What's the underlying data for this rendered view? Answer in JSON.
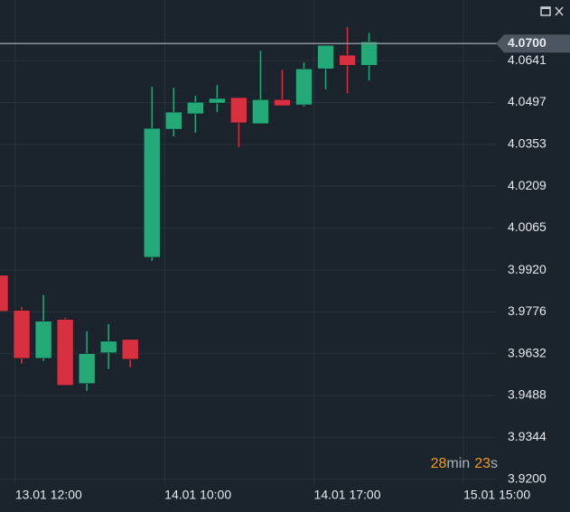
{
  "chart_data": {
    "type": "candlestick",
    "x": [
      0,
      1,
      2,
      3,
      4,
      5,
      6,
      7,
      8,
      9,
      10,
      11,
      12,
      13,
      14,
      15,
      16,
      17
    ],
    "open": [
      3.9902,
      3.9781,
      3.9616,
      3.975,
      3.9529,
      3.9635,
      3.9681,
      3.9964,
      4.0405,
      4.0458,
      4.0495,
      4.0514,
      4.0424,
      4.0507,
      4.0489,
      4.0613,
      4.066,
      4.0625
    ],
    "high": [
      3.9902,
      3.9793,
      3.9834,
      3.9756,
      3.9709,
      3.9734,
      3.9681,
      4.0551,
      4.0548,
      4.052,
      4.0557,
      4.0514,
      4.0675,
      4.061,
      4.0635,
      4.0694,
      4.0756,
      4.0737
    ],
    "low": [
      3.9778,
      3.9598,
      3.9607,
      3.9523,
      3.9504,
      3.9579,
      3.9585,
      3.9952,
      4.038,
      4.0393,
      4.0464,
      4.0343,
      4.0424,
      4.0486,
      4.0483,
      4.0542,
      4.0529,
      4.0573
    ],
    "close": [
      3.9778,
      3.9616,
      3.9744,
      3.9523,
      3.9632,
      3.9675,
      3.9613,
      4.0408,
      4.0464,
      4.0498,
      4.0511,
      4.0427,
      4.0507,
      4.0486,
      4.0613,
      4.0694,
      4.0625,
      4.0706
    ],
    "up_color": "#23a978",
    "down_color": "#d9303f",
    "xlim": [
      0,
      22.8
    ],
    "xticks": [
      {
        "value": 0.7,
        "label": "13.01 12:00"
      },
      {
        "value": 7.58,
        "label": "14.01 10:00"
      },
      {
        "value": 14.46,
        "label": "14.01 17:00"
      },
      {
        "value": 21.35,
        "label": "15.01 15:00"
      }
    ],
    "ylim": [
      3.918,
      4.085
    ],
    "yticks": [
      4.0641,
      4.0497,
      4.0353,
      4.0209,
      4.0065,
      {
        "value": 3.992,
        "label": "3.9920"
      },
      3.9776,
      3.9632,
      3.9488,
      3.9344,
      {
        "value": 3.92,
        "label": "3.9200"
      }
    ],
    "grid": true,
    "last_price": {
      "value": 4.07,
      "label": "4.0700"
    },
    "countdown": {
      "minutes": 28,
      "minutes_unit": "min",
      "seconds": 23,
      "seconds_unit": "s"
    }
  }
}
